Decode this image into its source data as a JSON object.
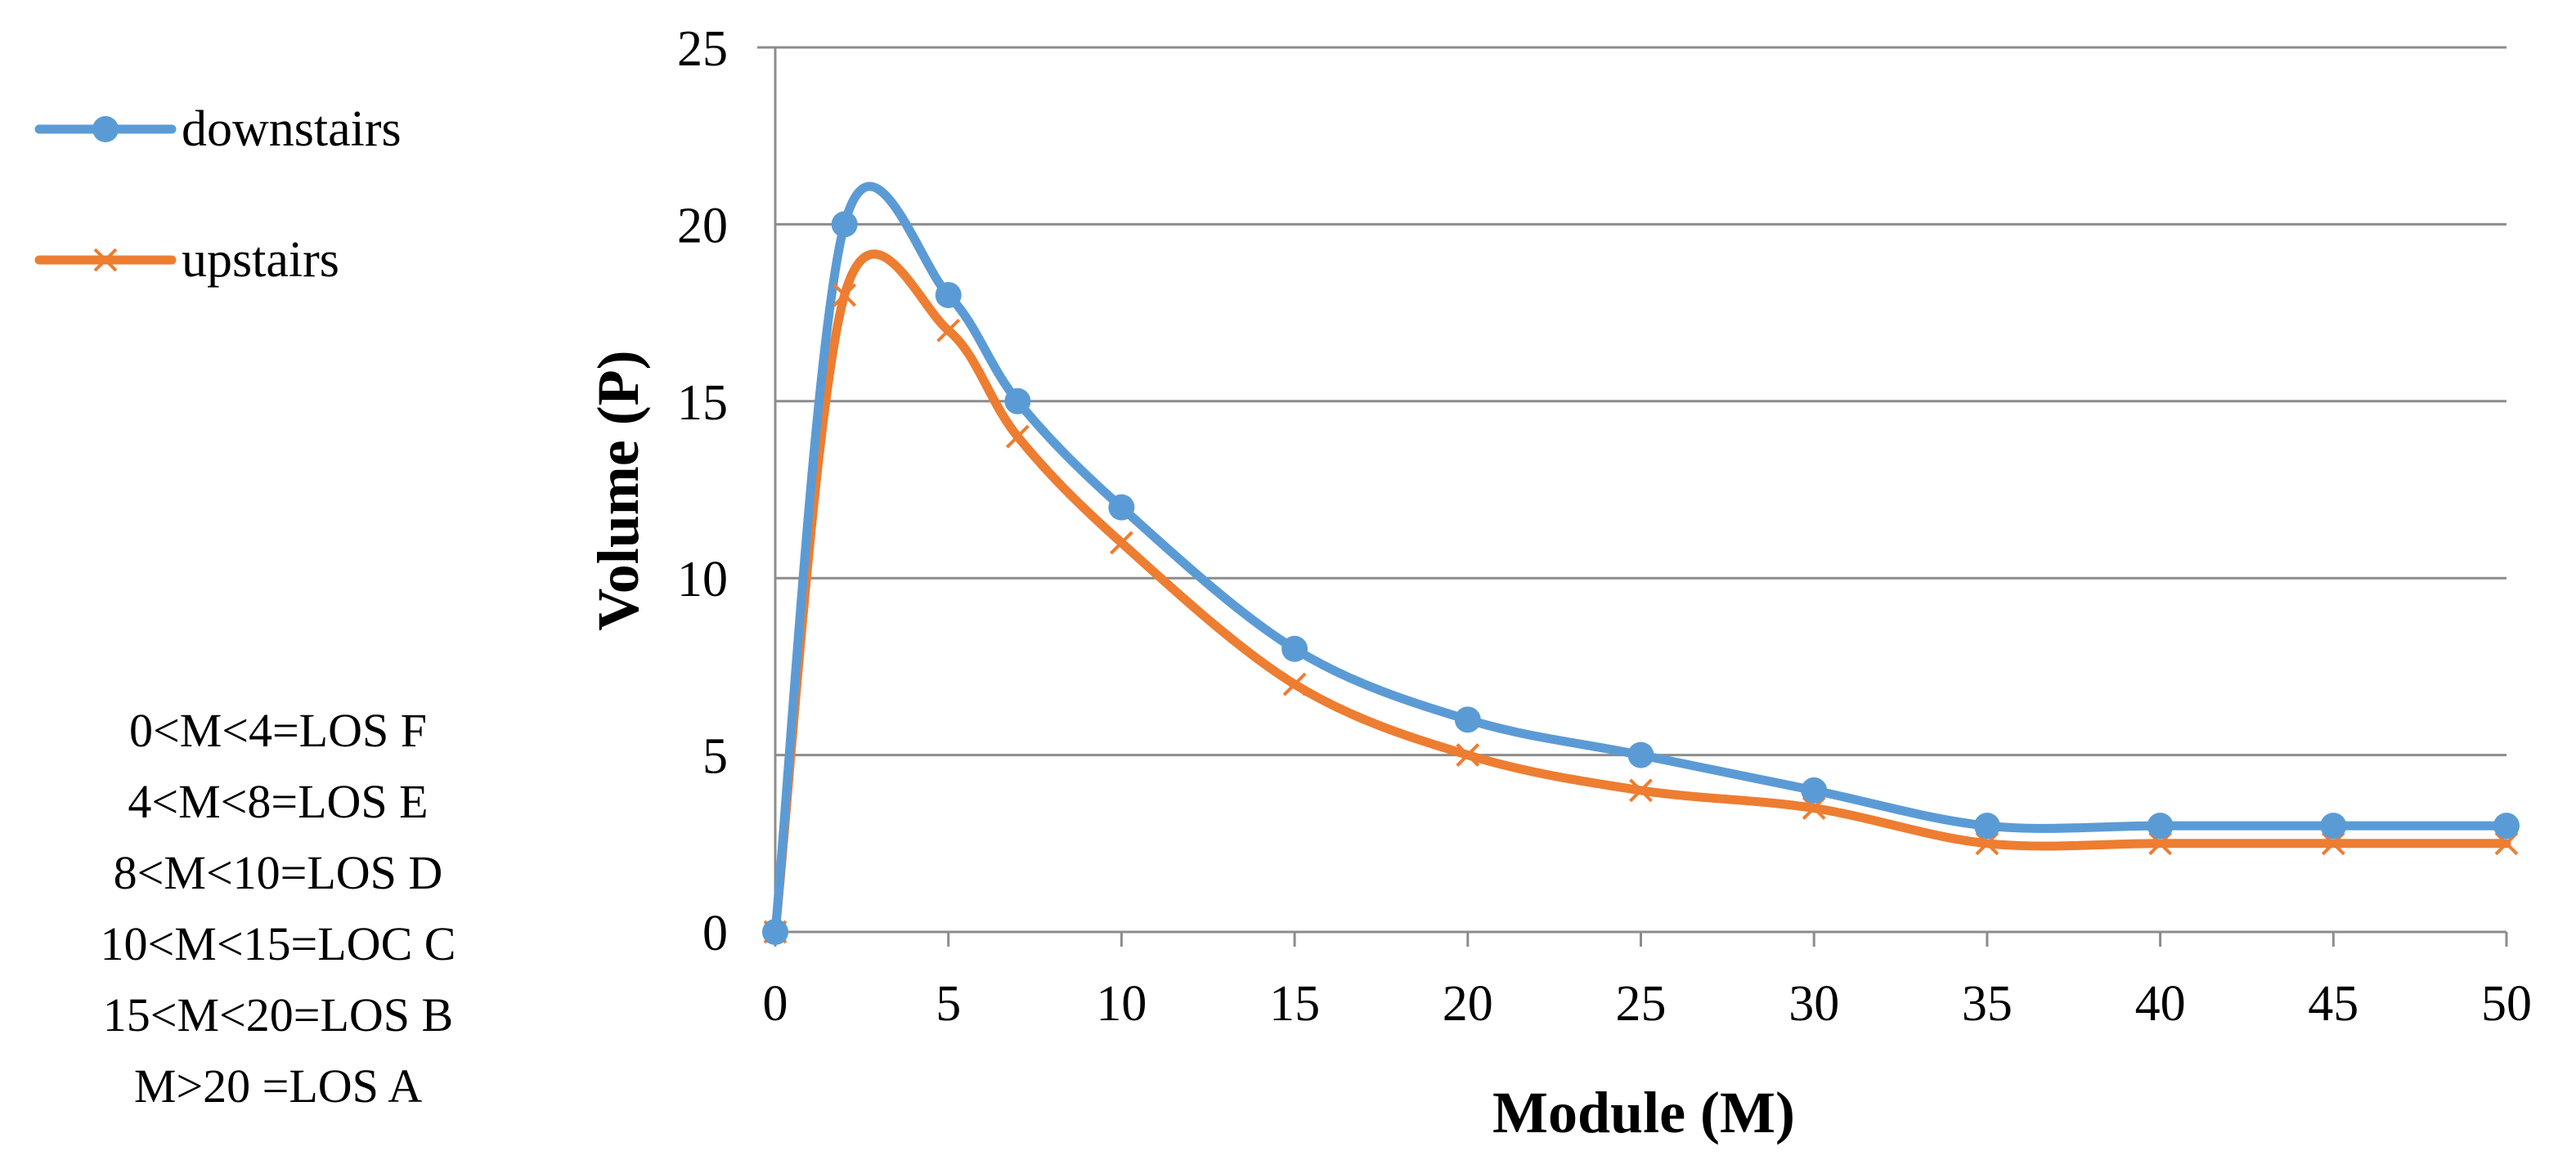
{
  "chart_data": {
    "type": "line",
    "title": "",
    "xlabel": "Module (M)",
    "ylabel": "Volume (P)",
    "xlim": [
      0,
      50
    ],
    "ylim": [
      0,
      25
    ],
    "x_ticks": [
      0,
      5,
      10,
      15,
      20,
      25,
      30,
      35,
      40,
      45,
      50
    ],
    "y_ticks": [
      0,
      5,
      10,
      15,
      20,
      25
    ],
    "grid": "horizontal",
    "legend_position": "top-left",
    "series": [
      {
        "name": "downstairs",
        "color": "#5B9BD5",
        "marker": "circle",
        "x": [
          0,
          2,
          5,
          7,
          10,
          15,
          20,
          25,
          30,
          35,
          40,
          45,
          50
        ],
        "values": [
          0,
          20,
          18,
          15,
          12,
          8,
          6,
          5,
          4,
          3,
          3,
          3,
          3
        ]
      },
      {
        "name": "upstairs",
        "color": "#ED7D31",
        "marker": "x",
        "x": [
          0,
          2,
          5,
          7,
          10,
          15,
          20,
          25,
          30,
          35,
          40,
          45,
          50
        ],
        "values": [
          0,
          18,
          17,
          14,
          11,
          7,
          5,
          4,
          3.5,
          2.5,
          2.5,
          2.5,
          2.5
        ]
      }
    ]
  },
  "los_notes": [
    "0<M<4=LOS F",
    "4<M<8=LOS E",
    "8<M<10=LOS D",
    "10<M<15=LOC C",
    "15<M<20=LOS B",
    "M>20 =LOS A"
  ]
}
